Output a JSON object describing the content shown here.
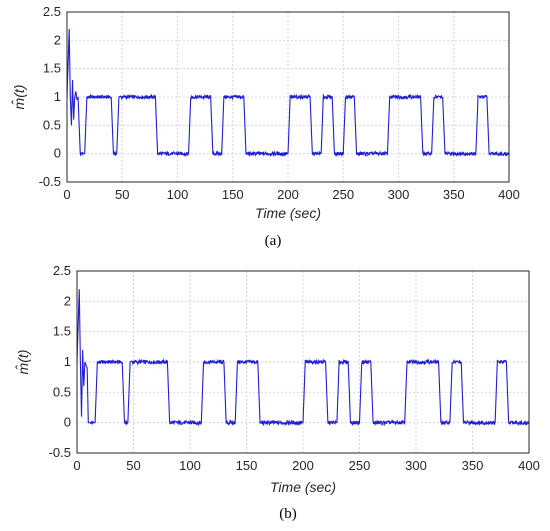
{
  "chart_data": [
    {
      "panel": "a",
      "type": "line",
      "caption": "(a)",
      "xlabel": "Time (sec)",
      "ylabel": "m̂(t)",
      "xlim": [
        0,
        400
      ],
      "ylim": [
        -0.5,
        2.5
      ],
      "xticks": [
        "0",
        "50",
        "100",
        "150",
        "200",
        "250",
        "300",
        "350",
        "400"
      ],
      "yticks": [
        "-0.5",
        "0",
        "0.5",
        "1",
        "1.5",
        "2",
        "2.5"
      ],
      "grid": true,
      "series": [
        {
          "color": "#1f1fcf",
          "x": [
            0,
            2,
            3,
            4,
            5,
            6,
            7,
            8,
            9,
            10,
            12,
            15,
            16,
            17,
            18,
            40,
            41,
            42,
            45,
            46,
            47,
            48,
            80,
            81,
            82,
            110,
            111,
            112,
            130,
            131,
            132,
            140,
            141,
            142,
            160,
            161,
            162,
            200,
            201,
            202,
            220,
            221,
            222,
            230,
            231,
            232,
            240,
            241,
            242,
            250,
            251,
            252,
            260,
            261,
            262,
            290,
            291,
            292,
            320,
            321,
            322,
            330,
            331,
            332,
            340,
            341,
            342,
            370,
            371,
            372,
            380,
            381,
            382,
            400
          ],
          "y": [
            1.0,
            2.2,
            1.0,
            0.5,
            1.3,
            0.6,
            1.0,
            1.1,
            0.95,
            1.0,
            0.0,
            0.0,
            0.0,
            0.5,
            1.0,
            1.0,
            0.5,
            0.0,
            0.0,
            0.5,
            1.0,
            1.0,
            1.0,
            0.5,
            0.0,
            0.0,
            0.5,
            1.0,
            1.0,
            0.5,
            0.0,
            0.0,
            0.5,
            1.0,
            1.0,
            0.5,
            0.0,
            0.0,
            0.5,
            1.0,
            1.0,
            0.5,
            0.0,
            0.0,
            0.5,
            1.0,
            1.0,
            0.5,
            0.0,
            0.0,
            0.5,
            1.0,
            1.0,
            0.5,
            0.0,
            0.0,
            0.5,
            1.0,
            1.0,
            0.5,
            0.0,
            0.0,
            0.5,
            1.0,
            1.0,
            0.5,
            0.0,
            0.0,
            0.5,
            1.0,
            1.0,
            0.5,
            0.0,
            0.0
          ]
        }
      ]
    },
    {
      "panel": "b",
      "type": "line",
      "caption": "(b)",
      "xlabel": "Time (sec)",
      "ylabel": "m̂(t)",
      "xlim": [
        0,
        400
      ],
      "ylim": [
        -0.5,
        2.5
      ],
      "xticks": [
        "0",
        "50",
        "100",
        "150",
        "200",
        "250",
        "300",
        "350",
        "400"
      ],
      "yticks": [
        "-0.5",
        "0",
        "0.5",
        "1",
        "1.5",
        "2",
        "2.5"
      ],
      "grid": true,
      "series": [
        {
          "color": "#1f1fcf",
          "x": [
            0,
            2,
            3,
            4,
            5,
            6,
            7,
            8,
            9,
            10,
            12,
            15,
            16,
            17,
            18,
            40,
            41,
            42,
            45,
            46,
            47,
            48,
            80,
            81,
            82,
            110,
            111,
            112,
            130,
            131,
            132,
            140,
            141,
            142,
            160,
            161,
            162,
            200,
            201,
            202,
            220,
            221,
            222,
            230,
            231,
            232,
            240,
            241,
            242,
            250,
            251,
            252,
            260,
            261,
            262,
            290,
            291,
            292,
            320,
            321,
            322,
            330,
            331,
            332,
            340,
            341,
            342,
            370,
            371,
            372,
            380,
            381,
            382,
            400
          ],
          "y": [
            1.0,
            2.2,
            1.0,
            0.1,
            1.2,
            0.6,
            1.0,
            0.95,
            0.9,
            0.0,
            0.0,
            0.0,
            0.0,
            0.5,
            1.0,
            1.0,
            0.5,
            0.0,
            0.0,
            0.5,
            1.0,
            1.0,
            1.0,
            0.5,
            0.0,
            0.0,
            0.5,
            1.0,
            1.0,
            0.5,
            0.0,
            0.0,
            0.5,
            1.0,
            1.0,
            0.5,
            0.0,
            0.0,
            0.5,
            1.0,
            1.0,
            0.5,
            0.0,
            0.0,
            0.5,
            1.0,
            1.0,
            0.5,
            0.0,
            0.0,
            0.5,
            1.0,
            1.0,
            0.5,
            0.0,
            0.0,
            0.5,
            1.0,
            1.0,
            0.5,
            0.0,
            0.0,
            0.5,
            1.0,
            1.0,
            0.5,
            0.0,
            0.0,
            0.5,
            1.0,
            1.0,
            0.5,
            0.0,
            0.0
          ]
        }
      ]
    }
  ]
}
